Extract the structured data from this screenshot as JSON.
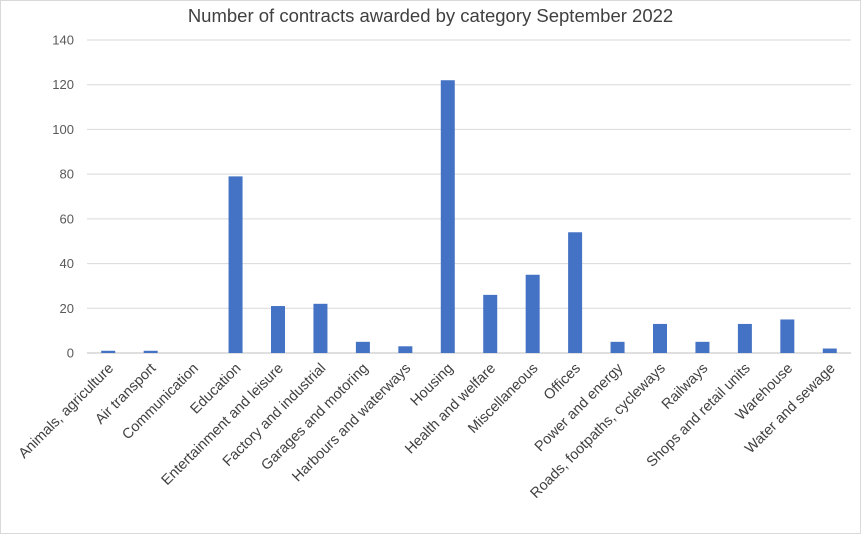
{
  "chart_data": {
    "type": "bar",
    "title": "Number of contracts awarded by category September 2022",
    "xlabel": "",
    "ylabel": "",
    "ylim": [
      0,
      140
    ],
    "yticks": [
      0,
      20,
      40,
      60,
      80,
      100,
      120,
      140
    ],
    "grid": true,
    "legend": "none",
    "color": "#4472c4",
    "categories": [
      "Animals, agriculture",
      "Air transport",
      "Communication",
      "Education",
      "Entertainment and leisure",
      "Factory and industrial",
      "Garages and motoring",
      "Harbours and waterways",
      "Housing",
      "Health and welfare",
      "Miscellaneous",
      "Offices",
      "Power and energy",
      "Roads, footpaths, cycleways",
      "Railways",
      "Shops and retail units",
      "Warehouse",
      "Water and sewage"
    ],
    "values": [
      1,
      1,
      0,
      79,
      21,
      22,
      5,
      3,
      122,
      26,
      35,
      54,
      5,
      13,
      5,
      13,
      15,
      2
    ]
  }
}
